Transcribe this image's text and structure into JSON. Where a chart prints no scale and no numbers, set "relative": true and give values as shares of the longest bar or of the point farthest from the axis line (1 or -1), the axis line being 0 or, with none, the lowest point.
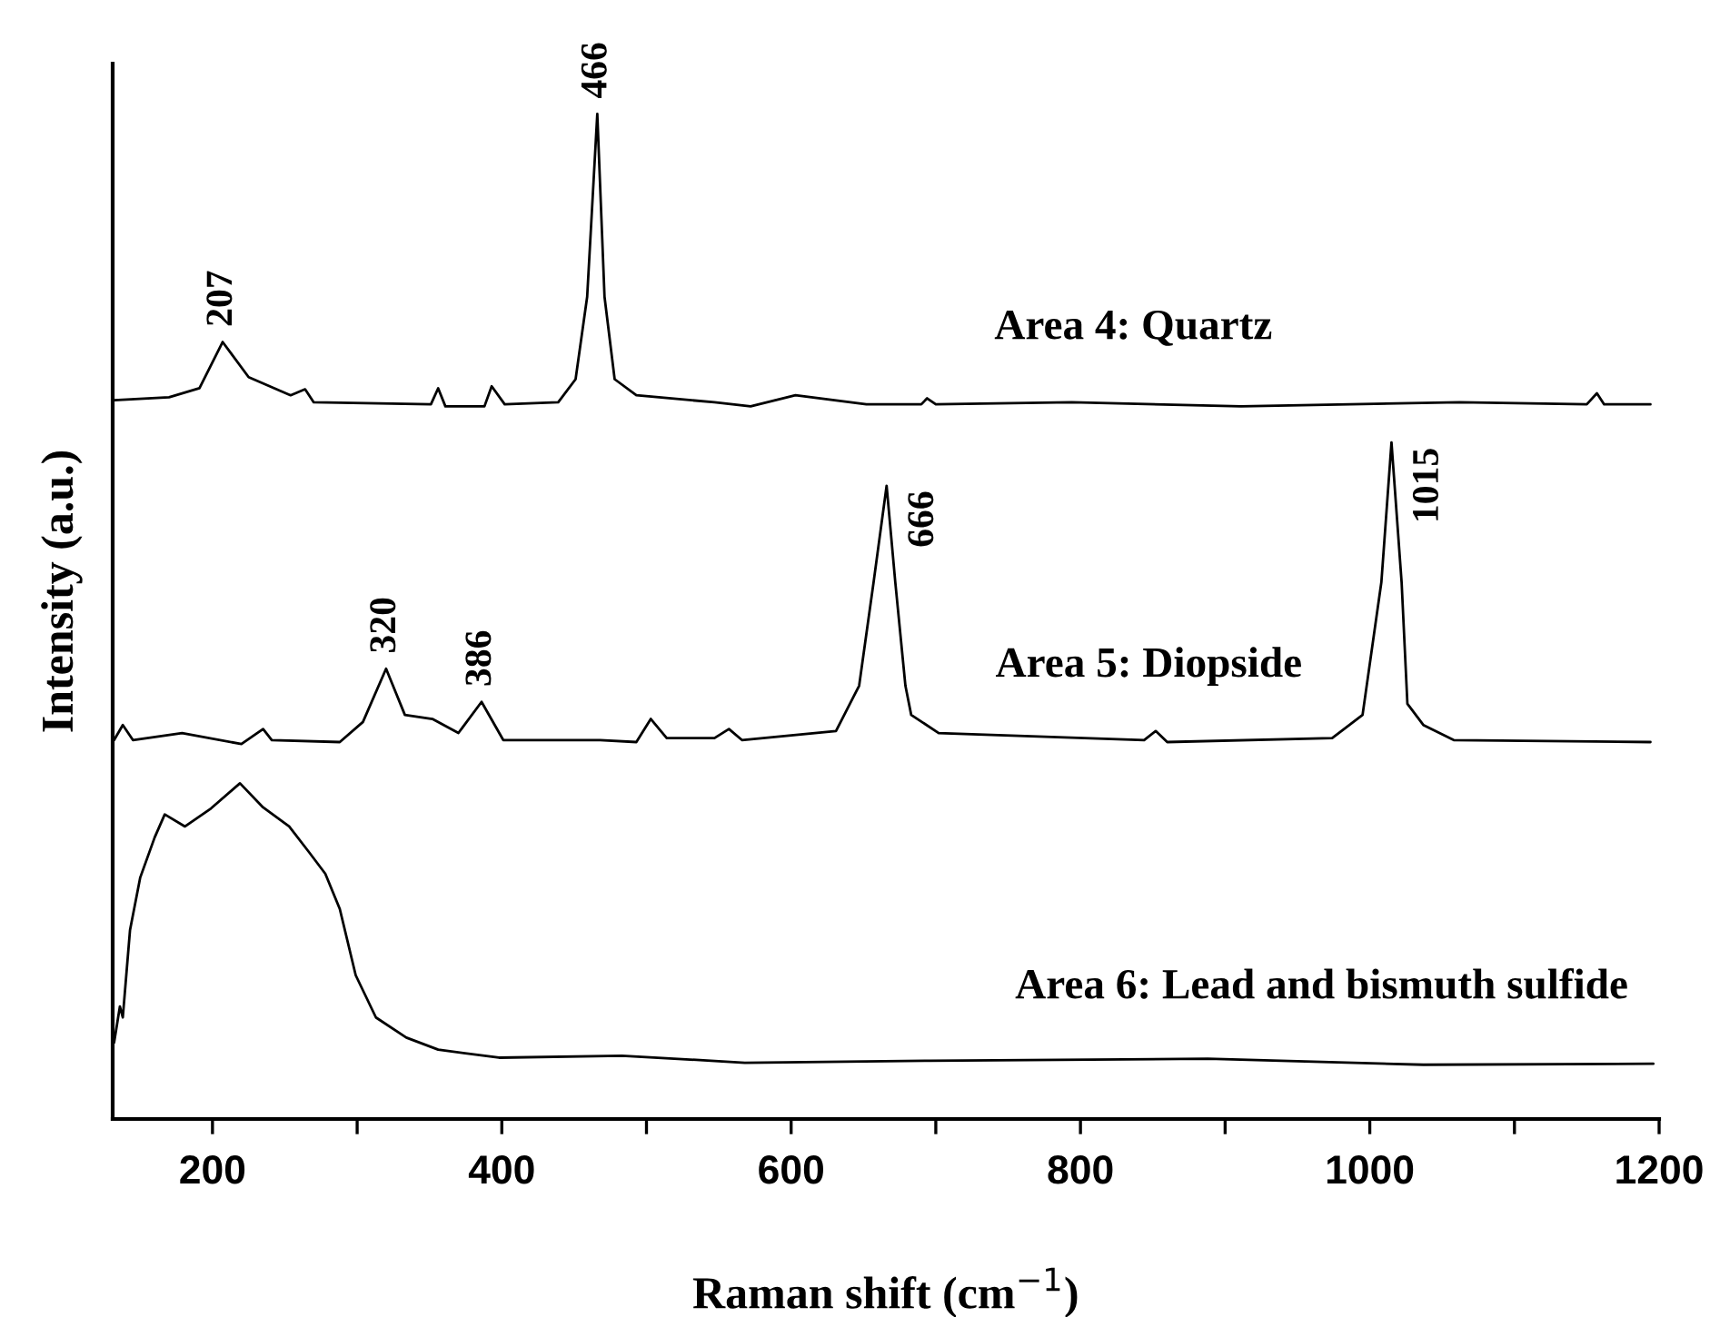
{
  "chart_data": {
    "type": "line",
    "relative": true,
    "xlabel": "Raman shift (cm$^{−1}$)",
    "ylabel": "Intensity (a.u.)",
    "xlim": [
      131,
      1200
    ],
    "xticks": [
      200,
      {
        "value": 300,
        "label": null
      },
      400,
      {
        "value": 500,
        "label": null
      },
      600,
      {
        "value": 700,
        "label": null
      },
      800,
      {
        "value": 900,
        "label": null
      },
      1000,
      {
        "value": 1100,
        "label": null
      },
      1200
    ],
    "grid": false,
    "legend": false,
    "marker": "none",
    "line_style": "solid",
    "series": [
      {
        "name": "Area 4: Quartz",
        "color": "#000000",
        "x": [
          132,
          170,
          191,
          207,
          225,
          254,
          264,
          270,
          351,
          356,
          361,
          388,
          393,
          402,
          439,
          451,
          459,
          466,
          471,
          478,
          493,
          547,
          572,
          603,
          652,
          690,
          694,
          700,
          794,
          911,
          1062,
          1150,
          1157,
          1162,
          1194
        ],
        "values": [
          0.715,
          0.718,
          0.727,
          0.773,
          0.738,
          0.72,
          0.726,
          0.713,
          0.711,
          0.727,
          0.709,
          0.709,
          0.729,
          0.711,
          0.713,
          0.736,
          0.818,
          1.0,
          0.818,
          0.736,
          0.72,
          0.713,
          0.709,
          0.72,
          0.711,
          0.711,
          0.717,
          0.711,
          0.713,
          0.709,
          0.713,
          0.711,
          0.722,
          0.711,
          0.711
        ]
      },
      {
        "name": "Area 5: Diopside",
        "color": "#000000",
        "x": [
          132,
          138,
          145,
          179,
          220,
          235,
          241,
          288,
          304,
          320,
          333,
          352,
          370,
          386,
          401,
          468,
          493,
          503,
          514,
          547,
          557,
          566,
          631,
          647,
          657,
          666,
          672,
          679,
          683,
          702,
          844,
          852,
          860,
          974,
          995,
          1008,
          1015,
          1022,
          1026,
          1037,
          1058,
          1194
        ],
        "values": [
          0.377,
          0.392,
          0.377,
          0.384,
          0.373,
          0.388,
          0.377,
          0.375,
          0.395,
          0.448,
          0.402,
          0.398,
          0.384,
          0.415,
          0.377,
          0.377,
          0.375,
          0.398,
          0.379,
          0.379,
          0.388,
          0.377,
          0.386,
          0.431,
          0.534,
          0.63,
          0.534,
          0.431,
          0.402,
          0.384,
          0.377,
          0.386,
          0.375,
          0.379,
          0.402,
          0.534,
          0.673,
          0.534,
          0.413,
          0.392,
          0.377,
          0.375
        ]
      },
      {
        "name": "Area 6: Lead and bismuth sulfide",
        "color": "#000000",
        "x": [
          132,
          136,
          138,
          143,
          150,
          160,
          167,
          181,
          199,
          219,
          235,
          253,
          267,
          278,
          288,
          299,
          313,
          334,
          356,
          398,
          483,
          568,
          696,
          888,
          1037,
          1196
        ],
        "values": [
          0.076,
          0.112,
          0.101,
          0.188,
          0.24,
          0.28,
          0.303,
          0.291,
          0.309,
          0.334,
          0.31,
          0.291,
          0.265,
          0.244,
          0.209,
          0.143,
          0.101,
          0.081,
          0.069,
          0.061,
          0.063,
          0.056,
          0.058,
          0.06,
          0.054,
          0.055
        ]
      }
    ],
    "annotations": [
      {
        "text": "207",
        "x": 207,
        "y": 0.773
      },
      {
        "text": "466",
        "x": 466,
        "y": 1.0
      },
      {
        "text": "320",
        "x": 320,
        "y": 0.448
      },
      {
        "text": "386",
        "x": 386,
        "y": 0.415
      },
      {
        "text": "666",
        "x": 666,
        "y": 0.63
      },
      {
        "text": "1015",
        "x": 1015,
        "y": 0.673
      }
    ]
  }
}
